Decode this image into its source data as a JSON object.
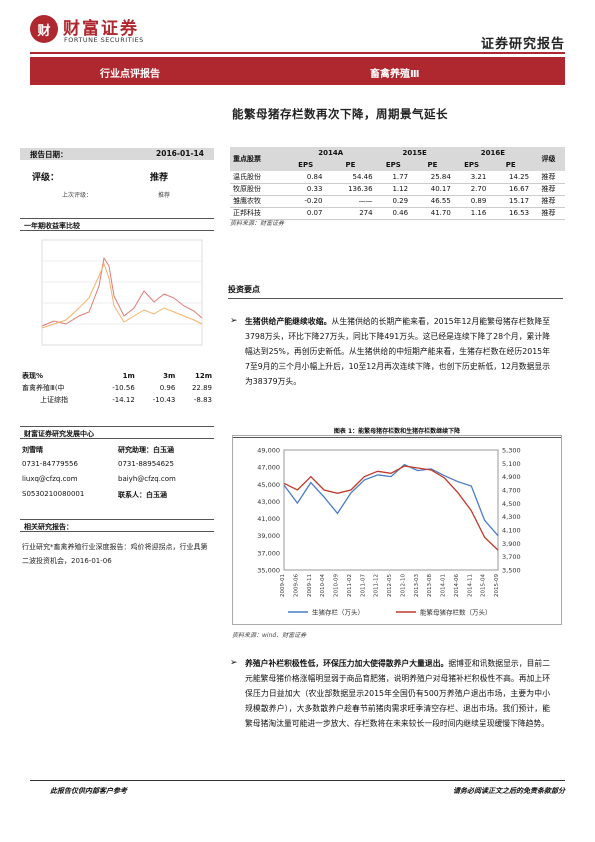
{
  "header": {
    "logo_char": "财",
    "brand_cn": "财富证券",
    "brand_en": "FORTUNE SECURITIES",
    "report_type": "证券研究报告"
  },
  "band": {
    "left": "行业点评报告",
    "right": "畜禽养殖Ⅲ"
  },
  "title": "能繁母猪存栏数再次下降，周期景气延长",
  "report_date_label": "报告日期：",
  "report_date": "2016-01-14",
  "rating_label": "评级：",
  "rating": "推荐",
  "last_rating_label": "上次评级：",
  "last_rating": "推荐",
  "perf_chart_title": "一年期收益率比较",
  "perf_table": {
    "headers": [
      "表现%",
      "1m",
      "3m",
      "12m"
    ],
    "rows": [
      [
        "畜禽养殖Ⅲ(中",
        "-10.56",
        "0.96",
        "22.89"
      ],
      [
        "上证综指",
        "-14.12",
        "-10.43",
        "-8.83"
      ]
    ]
  },
  "team": {
    "title": "财富证券研究发展中心",
    "analyst_name": "刘雪晴",
    "assistant_name": "研究助理：白玉涵",
    "phone1": "0731-84779556",
    "phone2": "0731-88954625",
    "email1": "liuxq@cfzq.com",
    "email2": "baiyh@cfzq.com",
    "cert": "S0530210080001",
    "contact": "联系人：白玉涵"
  },
  "related": {
    "title": "相关研究报告：",
    "text": "行业研究*畜禽养殖行业深度报告：鸡价将迎拐点，行业具第二波投资机会，2016-01-06"
  },
  "stock_table": {
    "header_name": "重点股票",
    "years": [
      "2014A",
      "2015E",
      "2016E"
    ],
    "sub": [
      "EPS",
      "PE",
      "EPS",
      "PE",
      "EPS",
      "PE"
    ],
    "rating_header": "评级",
    "rows": [
      [
        "温氏股份",
        "0.84",
        "54.46",
        "1.77",
        "25.84",
        "3.21",
        "14.25",
        "推荐"
      ],
      [
        "牧原股份",
        "0.33",
        "136.36",
        "1.12",
        "40.17",
        "2.70",
        "16.67",
        "推荐"
      ],
      [
        "雏鹰农牧",
        "-0.20",
        "——",
        "0.29",
        "46.55",
        "0.89",
        "15.17",
        "推荐"
      ],
      [
        "正邦科技",
        "0.07",
        "274",
        "0.46",
        "41.70",
        "1.16",
        "16.53",
        "推荐"
      ]
    ],
    "source": "资料来源：财富证券"
  },
  "invest_head": "投资要点",
  "p1_bold": "生猪供给产能继续收缩。",
  "p1": "从生猪供给的长期产能来看，2015年12月能繁母猪存栏数降至3798万头，环比下降27万头，同比下降491万头。这已经是连续下降了28个月，累计降幅达到25%，再创历史新低。从生猪供给的中短期产能来看，生猪存栏数在经历2015年7至9月的三个月小幅上升后，10至12月再次连续下降，也创下历史新低，12月数据显示为38379万头。",
  "figure": {
    "title": "图表 1：能繁母猪存栏数和生猪存栏数继续下降",
    "source": "资料来源：wind、财富证券",
    "legend_a": "生猪存栏（万头）",
    "legend_b": "能繁母猪存栏数（万头）"
  },
  "chart_data": {
    "type": "line",
    "x": [
      "2009-01",
      "2009-06",
      "2009-11",
      "2010-04",
      "2010-09",
      "2011-02",
      "2011-07",
      "2011-12",
      "2012-05",
      "2012-10",
      "2013-03",
      "2013-08",
      "2014-01",
      "2014-06",
      "2014-11",
      "2015-04",
      "2015-09"
    ],
    "y_left_ticks": [
      "49,000",
      "47,000",
      "45,000",
      "43,000",
      "41,000",
      "39,000",
      "37,000",
      "35,000"
    ],
    "y_right_ticks": [
      "5,300",
      "5,100",
      "4,900",
      "4,700",
      "4,500",
      "4,300",
      "4,100",
      "3,900",
      "3,700",
      "3,500"
    ],
    "ylim_left": [
      35000,
      49000
    ],
    "ylim_right": [
      3500,
      5300
    ],
    "series": [
      {
        "name": "生猪存栏（万头）",
        "axis": "left",
        "values": [
          44900,
          42800,
          45200,
          43500,
          41600,
          44000,
          45500,
          46100,
          45900,
          47300,
          46600,
          46800,
          46000,
          45300,
          44800,
          40800,
          39000
        ]
      },
      {
        "name": "能繁母猪存栏数（万头）",
        "axis": "right",
        "values": [
          4800,
          4700,
          4900,
          4700,
          4650,
          4700,
          4900,
          4980,
          4950,
          5060,
          5030,
          5000,
          4880,
          4660,
          4390,
          3990,
          3798
        ]
      }
    ],
    "colors": [
      "#4a7bc6",
      "#c0392b"
    ]
  },
  "p2_bold": "养殖户补栏积极性低，环保压力加大使得散养户大量退出。",
  "p2": "据博亚和讯数据显示，目前二元能繁母猪价格涨幅明显弱于商品育肥猪，说明养殖户对母猪补栏积极性不高。再加上环保压力日益加大（农业部数据显示2015年全国仍有500万养殖户退出市场，主要为中小规模散养户），大多数散养户趁春节前猪肉需求旺季清空存栏、退出市场。我们预计，能繁母猪淘汰量可能进一步放大、存栏数将在未来较长一段时间内继续呈现缓慢下降趋势。",
  "footer": {
    "left": "此报告仅供内部客户参考",
    "right": "请务必阅读正文之后的免责条款部分"
  }
}
